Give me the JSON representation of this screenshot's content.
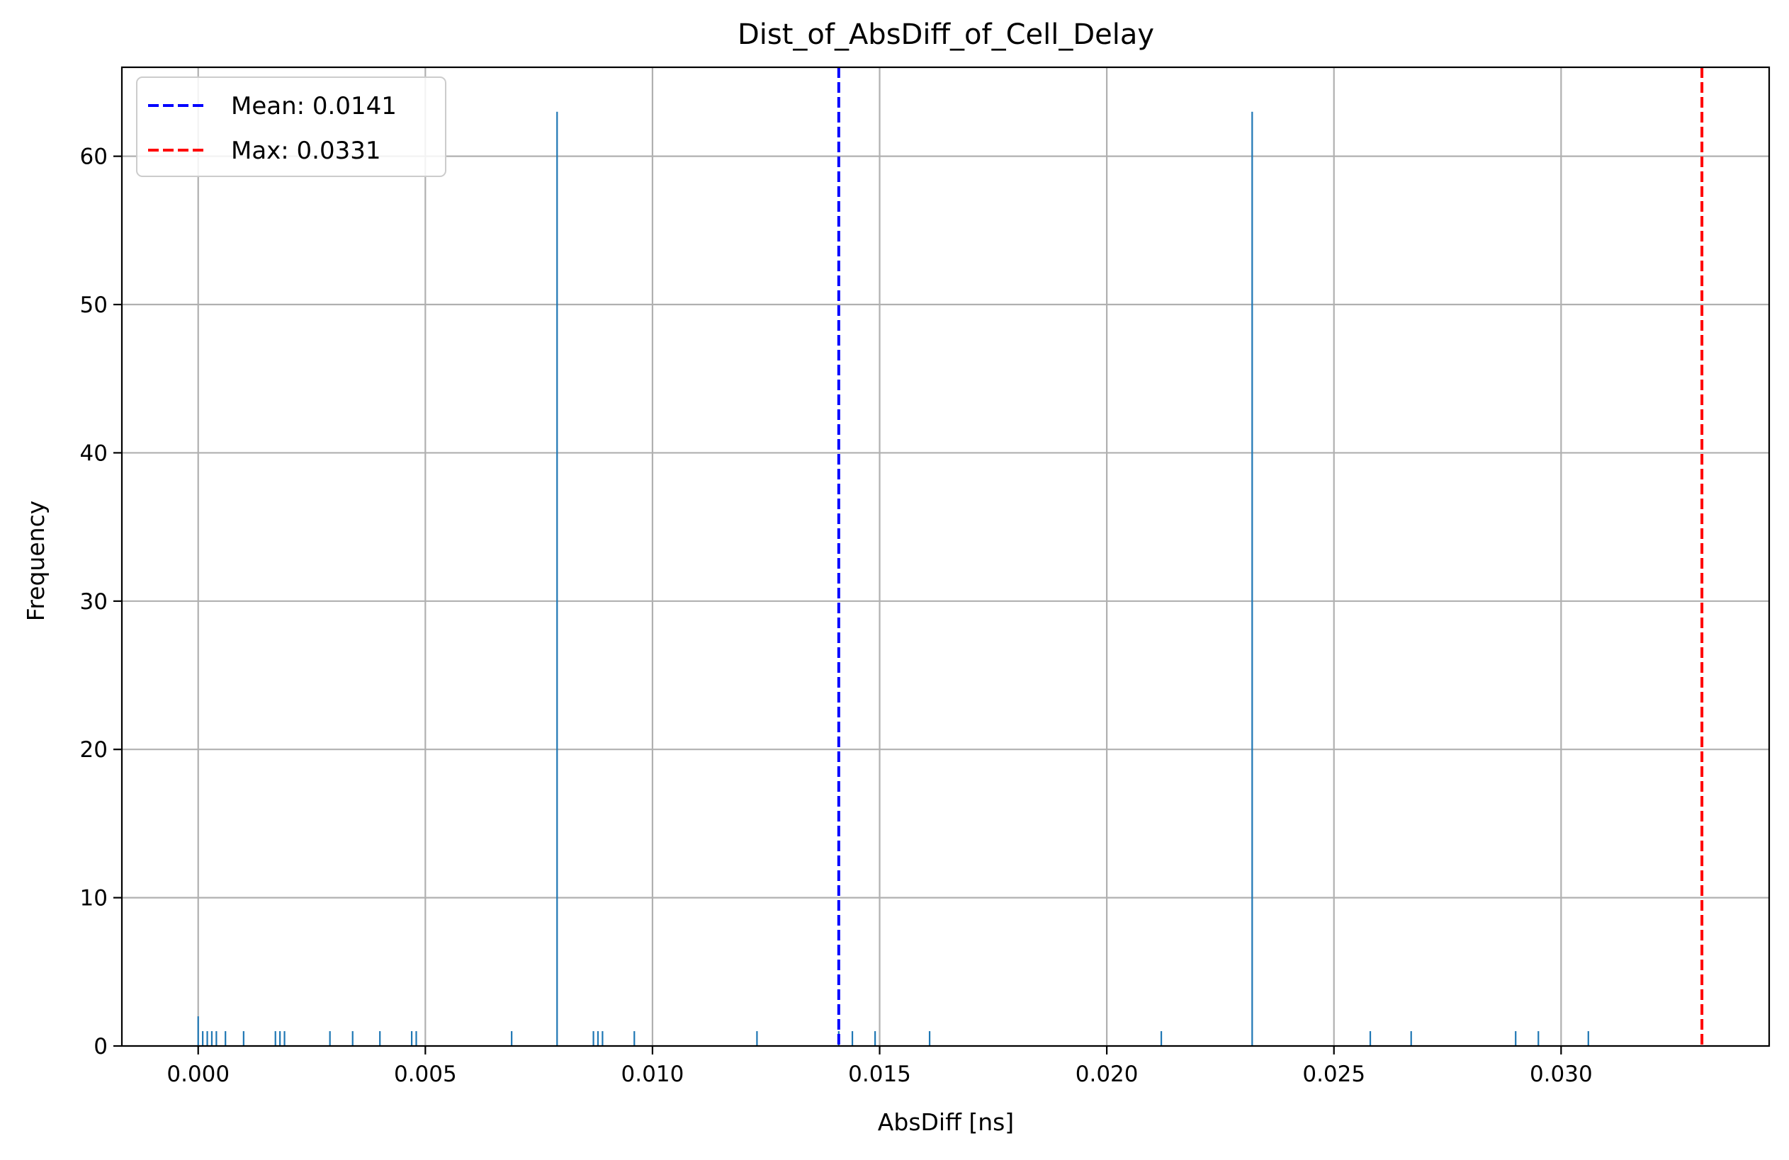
{
  "chart_data": {
    "type": "bar",
    "title": "Dist_of_AbsDiff_of_Cell_Delay",
    "xlabel": "AbsDiff [ns]",
    "ylabel": "Frequency",
    "xlim": [
      -0.00168,
      0.03458
    ],
    "ylim": [
      0,
      66
    ],
    "x_ticks": [
      0.0,
      0.005,
      0.01,
      0.015,
      0.02,
      0.025,
      0.03
    ],
    "x_tick_labels": [
      "0.000",
      "0.005",
      "0.010",
      "0.015",
      "0.020",
      "0.025",
      "0.030"
    ],
    "y_ticks": [
      0,
      10,
      20,
      30,
      40,
      50,
      60
    ],
    "y_tick_labels": [
      "0",
      "10",
      "20",
      "30",
      "40",
      "50",
      "60"
    ],
    "grid": true,
    "legend_position": "top-left",
    "bar_color": "#1f77b4",
    "bins": [
      {
        "x": 0.0,
        "count": 2
      },
      {
        "x": 0.0001,
        "count": 1
      },
      {
        "x": 0.0002,
        "count": 1
      },
      {
        "x": 0.0003,
        "count": 1
      },
      {
        "x": 0.0004,
        "count": 1
      },
      {
        "x": 0.0006,
        "count": 1
      },
      {
        "x": 0.001,
        "count": 1
      },
      {
        "x": 0.0017,
        "count": 1
      },
      {
        "x": 0.0018,
        "count": 1
      },
      {
        "x": 0.0019,
        "count": 1
      },
      {
        "x": 0.0029,
        "count": 1
      },
      {
        "x": 0.0034,
        "count": 1
      },
      {
        "x": 0.004,
        "count": 1
      },
      {
        "x": 0.0047,
        "count": 1
      },
      {
        "x": 0.0048,
        "count": 1
      },
      {
        "x": 0.0069,
        "count": 1
      },
      {
        "x": 0.0079,
        "count": 63
      },
      {
        "x": 0.0087,
        "count": 1
      },
      {
        "x": 0.0088,
        "count": 1
      },
      {
        "x": 0.0089,
        "count": 1
      },
      {
        "x": 0.0096,
        "count": 1
      },
      {
        "x": 0.0123,
        "count": 1
      },
      {
        "x": 0.0141,
        "count": 1
      },
      {
        "x": 0.0144,
        "count": 1
      },
      {
        "x": 0.0149,
        "count": 1
      },
      {
        "x": 0.0161,
        "count": 1
      },
      {
        "x": 0.0212,
        "count": 1
      },
      {
        "x": 0.0232,
        "count": 63
      },
      {
        "x": 0.0258,
        "count": 1
      },
      {
        "x": 0.0267,
        "count": 1
      },
      {
        "x": 0.029,
        "count": 1
      },
      {
        "x": 0.0295,
        "count": 1
      },
      {
        "x": 0.0306,
        "count": 1
      }
    ],
    "reference_lines": [
      {
        "name": "Mean: 0.0141",
        "x": 0.0141,
        "color": "#0000ff",
        "style": "dashed"
      },
      {
        "name": "Max: 0.0331",
        "x": 0.0331,
        "color": "#ff0000",
        "style": "dashed"
      }
    ]
  }
}
